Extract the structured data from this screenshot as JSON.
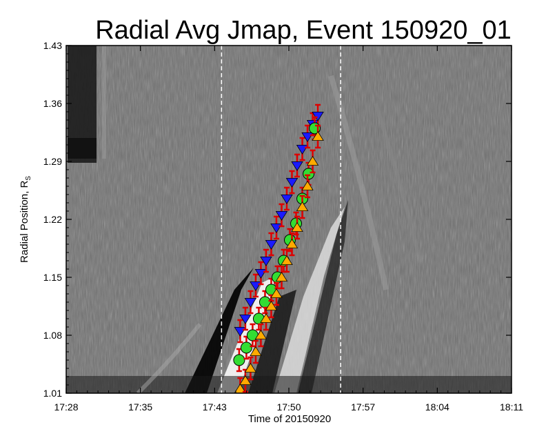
{
  "chart_data": {
    "type": "scatter",
    "title": "Radial Avg Jmap, Event 150920_01",
    "xlabel": "Time of 20150920",
    "ylabel_main": "Radial Position, R",
    "ylabel_sub": "S",
    "x_ticks": [
      "17:28",
      "17:35",
      "17:43",
      "17:50",
      "17:57",
      "18:04",
      "18:11"
    ],
    "x_range_minutes": [
      0,
      43
    ],
    "y_ticks": [
      "1.01",
      "1.08",
      "1.15",
      "1.22",
      "1.29",
      "1.36",
      "1.43"
    ],
    "y_range": [
      1.01,
      1.43
    ],
    "vertical_markers_minutes": [
      15.0,
      26.5
    ],
    "background": "grayscale running-difference Jmap",
    "colors": {
      "errorbar": "#dd0000",
      "leading_edge": "#1a1aff",
      "center": "#33dd33",
      "trailing_edge": "#ffaa00"
    },
    "series": [
      {
        "marker": "triangle-down",
        "color": "#1a1aff",
        "x_minutes": [
          16.8,
          17.3,
          17.8,
          18.3,
          18.8,
          19.3,
          19.8,
          20.3,
          20.8,
          21.3,
          21.8,
          22.3,
          22.8,
          23.3,
          23.8,
          24.3
        ],
        "y": [
          1.085,
          1.1,
          1.12,
          1.14,
          1.155,
          1.17,
          1.19,
          1.21,
          1.225,
          1.245,
          1.265,
          1.285,
          1.305,
          1.32,
          1.335,
          1.345
        ]
      },
      {
        "marker": "circle",
        "color": "#33dd33",
        "x_minutes": [
          16.7,
          17.4,
          18.0,
          18.6,
          19.2,
          19.8,
          20.4,
          21.0,
          21.6,
          22.2,
          22.8,
          23.4,
          24.0
        ],
        "y": [
          1.05,
          1.065,
          1.08,
          1.1,
          1.12,
          1.135,
          1.15,
          1.17,
          1.195,
          1.215,
          1.245,
          1.275,
          1.33
        ]
      },
      {
        "marker": "triangle-up",
        "color": "#ffaa00",
        "x_minutes": [
          16.8,
          17.3,
          17.8,
          18.3,
          18.8,
          19.3,
          19.8,
          20.3,
          20.8,
          21.3,
          21.8,
          22.3,
          22.8,
          23.3,
          23.8,
          24.3
        ],
        "y": [
          1.015,
          1.025,
          1.04,
          1.06,
          1.08,
          1.1,
          1.115,
          1.13,
          1.15,
          1.17,
          1.19,
          1.21,
          1.235,
          1.26,
          1.29,
          1.32
        ]
      }
    ]
  }
}
